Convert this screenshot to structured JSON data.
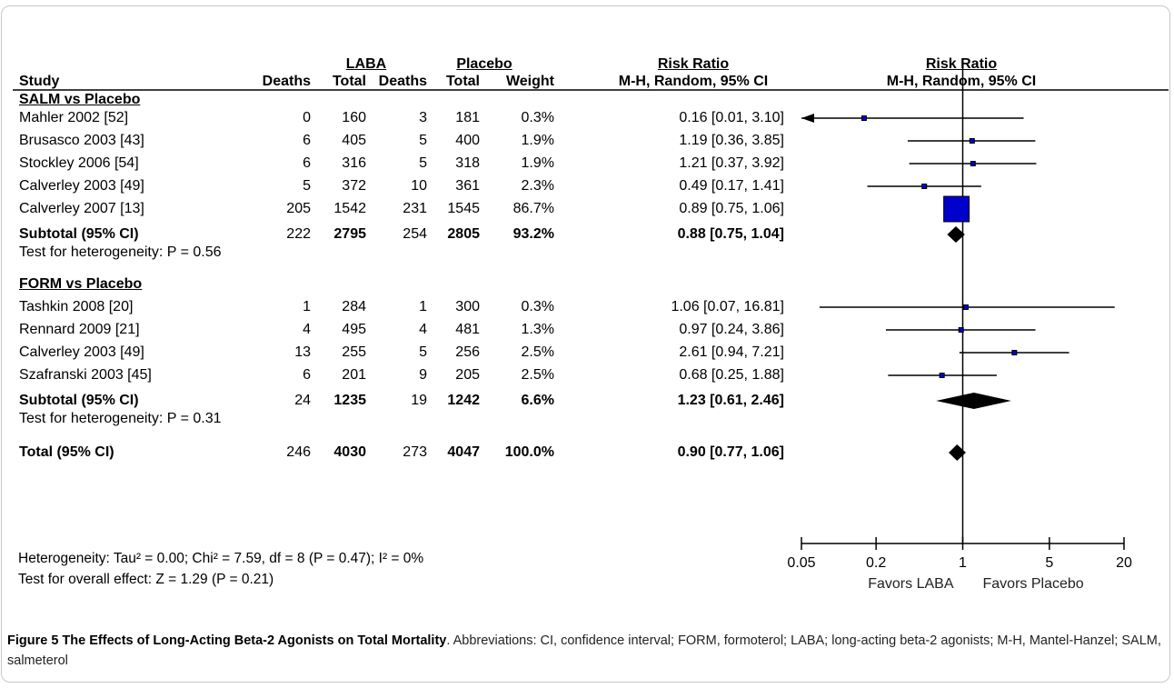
{
  "header": {
    "laba": "LABA",
    "placebo": "Placebo",
    "rr_left": "Risk Ratio",
    "rr_right": "Risk Ratio",
    "study": "Study",
    "deaths1": "Deaths",
    "total1": "Total",
    "deaths2": "Deaths",
    "total2": "Total",
    "weight": "Weight",
    "method_left": "M-H, Random, 95% CI",
    "method_right": "M-H, Random, 95% CI"
  },
  "rows": [
    {
      "kind": "group",
      "study": "SALM vs Placebo"
    },
    {
      "kind": "study",
      "study": "Mahler 2002 [52]",
      "d1": "0",
      "t1": "160",
      "d2": "3",
      "t2": "181",
      "w": "0.3%",
      "rr": "0.16 [0.01, 3.10]"
    },
    {
      "kind": "study",
      "study": "Brusasco 2003 [43]",
      "d1": "6",
      "t1": "405",
      "d2": "5",
      "t2": "400",
      "w": "1.9%",
      "rr": "1.19 [0.36, 3.85]"
    },
    {
      "kind": "study",
      "study": "Stockley 2006 [54]",
      "d1": "6",
      "t1": "316",
      "d2": "5",
      "t2": "318",
      "w": "1.9%",
      "rr": "1.21 [0.37, 3.92]"
    },
    {
      "kind": "study",
      "study": "Calverley 2003 [49]",
      "d1": "5",
      "t1": "372",
      "d2": "10",
      "t2": "361",
      "w": "2.3%",
      "rr": "0.49 [0.17, 1.41]"
    },
    {
      "kind": "study",
      "study": "Calverley 2007 [13]",
      "d1": "205",
      "t1": "1542",
      "d2": "231",
      "t2": "1545",
      "w": "86.7%",
      "rr": "0.89 [0.75, 1.06]"
    },
    {
      "kind": "subtotal",
      "study": "Subtotal (95% CI)",
      "d1": "222",
      "t1": "2795",
      "d2": "254",
      "t2": "2805",
      "w": "93.2%",
      "rr": "0.88 [0.75, 1.04]"
    },
    {
      "kind": "het",
      "study": "Test for heterogeneity: P = 0.56"
    },
    {
      "kind": "group",
      "study": "FORM vs Placebo"
    },
    {
      "kind": "study",
      "study": "Tashkin 2008 [20]",
      "d1": "1",
      "t1": "284",
      "d2": "1",
      "t2": "300",
      "w": "0.3%",
      "rr": "1.06 [0.07, 16.81]"
    },
    {
      "kind": "study",
      "study": "Rennard 2009 [21]",
      "d1": "4",
      "t1": "495",
      "d2": "4",
      "t2": "481",
      "w": "1.3%",
      "rr": "0.97 [0.24, 3.86]"
    },
    {
      "kind": "study",
      "study": "Calverley 2003 [49]",
      "d1": "13",
      "t1": "255",
      "d2": "5",
      "t2": "256",
      "w": "2.5%",
      "rr": "2.61 [0.94, 7.21]"
    },
    {
      "kind": "study",
      "study": "Szafranski 2003 [45]",
      "d1": "6",
      "t1": "201",
      "d2": "9",
      "t2": "205",
      "w": "2.5%",
      "rr": "0.68 [0.25, 1.88]"
    },
    {
      "kind": "subtotal",
      "study": "Subtotal (95% CI)",
      "d1": "24",
      "t1": "1235",
      "d2": "19",
      "t2": "1242",
      "w": "6.6%",
      "rr": "1.23 [0.61, 2.46]"
    },
    {
      "kind": "het",
      "study": "Test for heterogeneity: P = 0.31"
    },
    {
      "kind": "total",
      "study": "Total (95% CI)",
      "d1": "246",
      "t1": "4030",
      "d2": "273",
      "t2": "4047",
      "w": "100.0%",
      "rr": "0.90 [0.77, 1.06]"
    }
  ],
  "footer": {
    "heterogeneity": "Heterogeneity: Tau² = 0.00; Chi² = 7.59, df = 8 (P = 0.47); I² = 0%",
    "overall": "Test for overall effect: Z = 1.29 (P = 0.21)"
  },
  "caption": {
    "lead": "Figure 5 The Effects of Long-Acting Beta-2 Agonists on Total Mortality",
    "rest": ". Abbreviations: CI, confidence interval; FORM, formoterol; LABA; long-acting beta-2 agonists; M-H, Mantel-Hanzel; SALM, salmeterol"
  },
  "chart_data": {
    "type": "forest",
    "x_scale": "log",
    "x_range": [
      0.05,
      20
    ],
    "ticks": [
      0.05,
      0.2,
      1,
      5,
      20
    ],
    "tick_labels": [
      "0.05",
      "0.2",
      "1",
      "5",
      "20"
    ],
    "favors_left": "Favors LABA",
    "favors_right": "Favors Placebo",
    "point_color": "#0000cc",
    "studies": [
      {
        "row": 1,
        "rr": 0.16,
        "lo": 0.01,
        "hi": 3.1,
        "weight": 0.3
      },
      {
        "row": 2,
        "rr": 1.19,
        "lo": 0.36,
        "hi": 3.85,
        "weight": 1.9
      },
      {
        "row": 3,
        "rr": 1.21,
        "lo": 0.37,
        "hi": 3.92,
        "weight": 1.9
      },
      {
        "row": 4,
        "rr": 0.49,
        "lo": 0.17,
        "hi": 1.41,
        "weight": 2.3
      },
      {
        "row": 5,
        "rr": 0.89,
        "lo": 0.75,
        "hi": 1.06,
        "weight": 86.7
      },
      {
        "row": 9,
        "rr": 1.06,
        "lo": 0.07,
        "hi": 16.81,
        "weight": 0.3
      },
      {
        "row": 10,
        "rr": 0.97,
        "lo": 0.24,
        "hi": 3.86,
        "weight": 1.3
      },
      {
        "row": 11,
        "rr": 2.61,
        "lo": 0.94,
        "hi": 7.21,
        "weight": 2.5
      },
      {
        "row": 12,
        "rr": 0.68,
        "lo": 0.25,
        "hi": 1.88,
        "weight": 2.5
      }
    ],
    "diamonds": [
      {
        "row": 6,
        "rr": 0.88,
        "lo": 0.75,
        "hi": 1.04
      },
      {
        "row": 13,
        "rr": 1.23,
        "lo": 0.61,
        "hi": 2.46
      },
      {
        "row": 15,
        "rr": 0.9,
        "lo": 0.77,
        "hi": 1.06
      }
    ]
  }
}
